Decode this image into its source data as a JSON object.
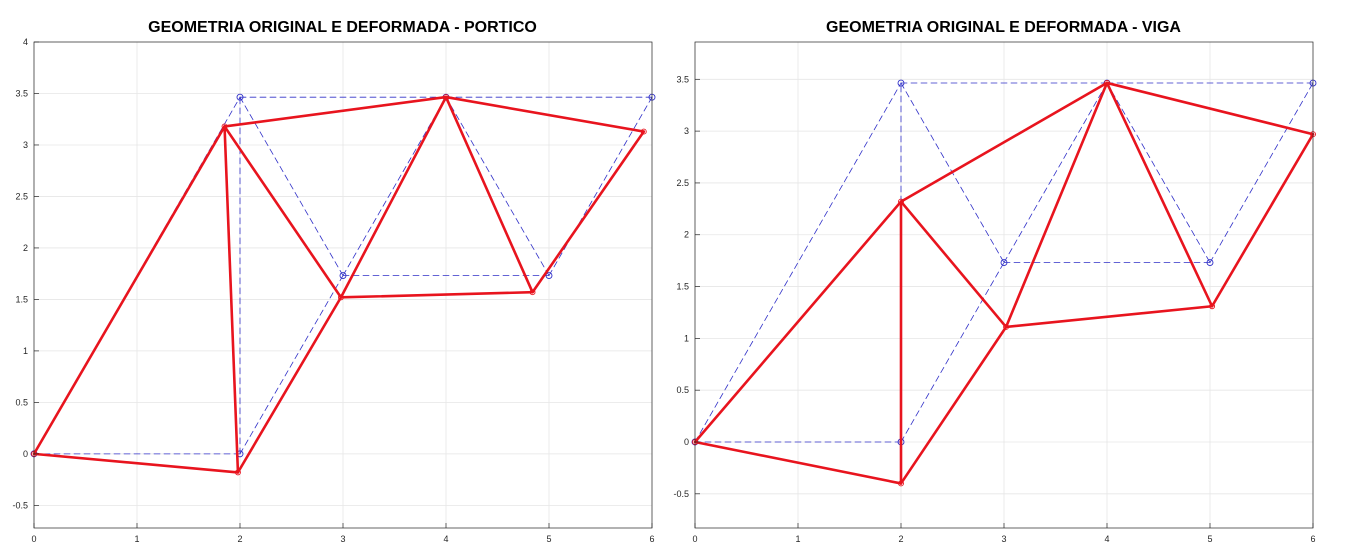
{
  "chart_data": [
    {
      "type": "line",
      "title": "GEOMETRIA ORIGINAL E DEFORMADA - PORTICO",
      "xlabel": "",
      "ylabel": "",
      "xlim": [
        0,
        6
      ],
      "ylim": [
        -0.72,
        4
      ],
      "xticks": [
        "0",
        "1",
        "2",
        "3",
        "4",
        "5",
        "6"
      ],
      "yticks": [
        "-0.5",
        "0",
        "0.5",
        "1",
        "1.5",
        "2",
        "2.5",
        "3",
        "3.5",
        "4"
      ],
      "grid": true,
      "legend": "none",
      "series": [
        {
          "style": "dashed",
          "color": "#3030c8",
          "marker": "circle",
          "nodes": [
            [
              0,
              0
            ],
            [
              2,
              0
            ],
            [
              2,
              3.464
            ],
            [
              3,
              1.732
            ],
            [
              4,
              3.464
            ],
            [
              5,
              1.732
            ],
            [
              6,
              3.464
            ]
          ],
          "members": [
            [
              0,
              1
            ],
            [
              0,
              2
            ],
            [
              1,
              2
            ],
            [
              1,
              3
            ],
            [
              2,
              3
            ],
            [
              2,
              4
            ],
            [
              3,
              4
            ],
            [
              3,
              5
            ],
            [
              4,
              5
            ],
            [
              4,
              6
            ],
            [
              5,
              6
            ]
          ]
        },
        {
          "style": "solid",
          "color": "#e8141e",
          "marker": "circle",
          "nodes": [
            [
              0,
              0
            ],
            [
              1.98,
              -0.18
            ],
            [
              1.85,
              3.18
            ],
            [
              2.98,
              1.52
            ],
            [
              4,
              3.465
            ],
            [
              4.84,
              1.57
            ],
            [
              5.92,
              3.13
            ]
          ],
          "members": [
            [
              0,
              1
            ],
            [
              0,
              2
            ],
            [
              1,
              2
            ],
            [
              1,
              3
            ],
            [
              2,
              3
            ],
            [
              2,
              4
            ],
            [
              3,
              4
            ],
            [
              3,
              5
            ],
            [
              4,
              5
            ],
            [
              4,
              6
            ],
            [
              5,
              6
            ]
          ]
        }
      ]
    },
    {
      "type": "line",
      "title": "GEOMETRIA ORIGINAL E DEFORMADA - VIGA",
      "xlabel": "",
      "ylabel": "",
      "xlim": [
        0,
        6
      ],
      "ylim": [
        -0.83,
        3.86
      ],
      "xticks": [
        "0",
        "1",
        "2",
        "3",
        "4",
        "5",
        "6"
      ],
      "yticks": [
        "-0.5",
        "0",
        "0.5",
        "1",
        "1.5",
        "2",
        "2.5",
        "3",
        "3.5"
      ],
      "grid": true,
      "legend": "none",
      "series": [
        {
          "style": "dashed",
          "color": "#3030c8",
          "marker": "circle",
          "nodes": [
            [
              0,
              0
            ],
            [
              2,
              0
            ],
            [
              2,
              3.464
            ],
            [
              3,
              1.732
            ],
            [
              4,
              3.464
            ],
            [
              5,
              1.732
            ],
            [
              6,
              3.464
            ]
          ],
          "members": [
            [
              0,
              1
            ],
            [
              0,
              2
            ],
            [
              1,
              2
            ],
            [
              1,
              3
            ],
            [
              2,
              3
            ],
            [
              2,
              4
            ],
            [
              3,
              4
            ],
            [
              3,
              5
            ],
            [
              4,
              5
            ],
            [
              4,
              6
            ],
            [
              5,
              6
            ]
          ]
        },
        {
          "style": "solid",
          "color": "#e8141e",
          "marker": "circle",
          "nodes": [
            [
              0,
              0
            ],
            [
              2,
              -0.4
            ],
            [
              2,
              2.32
            ],
            [
              3.02,
              1.11
            ],
            [
              4,
              3.465
            ],
            [
              5.02,
              1.31
            ],
            [
              6,
              2.97
            ]
          ],
          "members": [
            [
              0,
              1
            ],
            [
              0,
              2
            ],
            [
              1,
              2
            ],
            [
              1,
              3
            ],
            [
              2,
              3
            ],
            [
              2,
              4
            ],
            [
              3,
              4
            ],
            [
              3,
              5
            ],
            [
              4,
              5
            ],
            [
              4,
              6
            ],
            [
              5,
              6
            ]
          ]
        }
      ]
    }
  ]
}
